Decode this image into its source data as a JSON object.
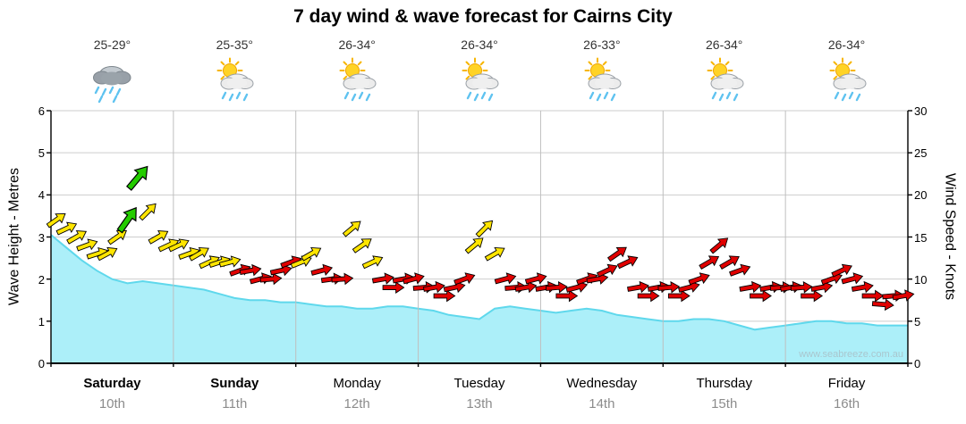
{
  "title": "7 day wind & wave forecast for Cairns City",
  "watermark": "www.seabreeze.com.au",
  "axes": {
    "left_label": "Wave Height - Metres",
    "right_label": "Wind Speed - Knots"
  },
  "days": [
    {
      "name": "Saturday",
      "date": "10th",
      "temp": "25-29°",
      "icon": "rain",
      "bold": true
    },
    {
      "name": "Sunday",
      "date": "11th",
      "temp": "25-35°",
      "icon": "sun-cloud-rain",
      "bold": true
    },
    {
      "name": "Monday",
      "date": "12th",
      "temp": "26-34°",
      "icon": "sun-cloud-rain",
      "bold": false
    },
    {
      "name": "Tuesday",
      "date": "13th",
      "temp": "26-34°",
      "icon": "sun-cloud-rain",
      "bold": false
    },
    {
      "name": "Wednesday",
      "date": "14th",
      "temp": "26-33°",
      "icon": "sun-cloud-rain",
      "bold": false
    },
    {
      "name": "Thursday",
      "date": "15th",
      "temp": "26-34°",
      "icon": "sun-cloud-rain",
      "bold": false
    },
    {
      "name": "Friday",
      "date": "16th",
      "temp": "26-34°",
      "icon": "sun-cloud-rain",
      "bold": false
    }
  ],
  "chart_data": {
    "type": "area",
    "title": "7 day wind & wave forecast for Cairns City",
    "x_unit": "hours (0 = start of Saturday 10th)",
    "x_range": [
      0,
      168
    ],
    "grid": true,
    "left_axis": {
      "label": "Wave Height - Metres",
      "ticks": [
        0,
        1,
        2,
        3,
        4,
        5,
        6
      ],
      "range": [
        0,
        6
      ]
    },
    "right_axis": {
      "label": "Wind Speed - Knots",
      "ticks": [
        0,
        5,
        10,
        15,
        20,
        25,
        30
      ],
      "range": [
        0,
        30
      ]
    },
    "wave_series": {
      "name": "Wave Height",
      "unit": "m",
      "x_start": 0,
      "x_step": 3,
      "values": [
        3.05,
        2.75,
        2.45,
        2.2,
        2.0,
        1.9,
        1.95,
        1.9,
        1.85,
        1.8,
        1.75,
        1.65,
        1.55,
        1.5,
        1.5,
        1.45,
        1.45,
        1.4,
        1.35,
        1.35,
        1.3,
        1.3,
        1.35,
        1.35,
        1.3,
        1.25,
        1.15,
        1.1,
        1.05,
        1.3,
        1.35,
        1.3,
        1.25,
        1.2,
        1.25,
        1.3,
        1.25,
        1.15,
        1.1,
        1.05,
        1.0,
        1.0,
        1.05,
        1.05,
        1.0,
        0.9,
        0.8,
        0.85,
        0.9,
        0.95,
        1.0,
        1.0,
        0.95,
        0.95,
        0.9,
        0.9,
        0.9
      ]
    },
    "wind_arrows": {
      "name": "Wind Speed",
      "unit": "knots",
      "point_format": [
        "t_hours",
        "knots",
        "direction_deg",
        "color_code"
      ],
      "points": [
        [
          1,
          17,
          -35,
          "y"
        ],
        [
          3,
          16,
          -25,
          "y"
        ],
        [
          5,
          15,
          -30,
          "y"
        ],
        [
          7,
          14,
          -20,
          "y"
        ],
        [
          9,
          13,
          -18,
          "y"
        ],
        [
          11,
          13,
          -28,
          "y"
        ],
        [
          13,
          15,
          -35,
          "y"
        ],
        [
          15,
          17,
          -55,
          "g"
        ],
        [
          17,
          22,
          -50,
          "g"
        ],
        [
          19,
          18,
          -45,
          "y"
        ],
        [
          21,
          15,
          -30,
          "y"
        ],
        [
          23,
          14,
          -25,
          "y"
        ],
        [
          25,
          14,
          -25,
          "y"
        ],
        [
          27,
          13,
          -20,
          "y"
        ],
        [
          29,
          13,
          -30,
          "y"
        ],
        [
          31,
          12,
          -25,
          "y"
        ],
        [
          33,
          12,
          -18,
          "y"
        ],
        [
          35,
          12,
          -15,
          "y"
        ],
        [
          37,
          11,
          -20,
          "r"
        ],
        [
          39,
          11,
          -10,
          "r"
        ],
        [
          41,
          10,
          -15,
          "r"
        ],
        [
          43,
          10,
          -5,
          "r"
        ],
        [
          45,
          11,
          -12,
          "r"
        ],
        [
          47,
          12,
          -20,
          "r"
        ],
        [
          49,
          12,
          -22,
          "y"
        ],
        [
          51,
          13,
          -30,
          "y"
        ],
        [
          53,
          11,
          -15,
          "r"
        ],
        [
          55,
          10,
          -8,
          "r"
        ],
        [
          57,
          10,
          -5,
          "r"
        ],
        [
          59,
          16,
          -40,
          "y"
        ],
        [
          61,
          14,
          -35,
          "y"
        ],
        [
          63,
          12,
          -25,
          "y"
        ],
        [
          65,
          10,
          -10,
          "r"
        ],
        [
          67,
          9,
          0,
          "r"
        ],
        [
          69,
          10,
          -10,
          "r"
        ],
        [
          71,
          10,
          -15,
          "r"
        ],
        [
          73,
          9,
          -5,
          "r"
        ],
        [
          75,
          9,
          -10,
          "r"
        ],
        [
          77,
          8,
          0,
          "r"
        ],
        [
          79,
          9,
          -12,
          "r"
        ],
        [
          81,
          10,
          -20,
          "r"
        ],
        [
          83,
          14,
          -40,
          "y"
        ],
        [
          85,
          16,
          -45,
          "y"
        ],
        [
          87,
          13,
          -30,
          "y"
        ],
        [
          89,
          10,
          -15,
          "r"
        ],
        [
          91,
          9,
          -5,
          "r"
        ],
        [
          93,
          9,
          -10,
          "r"
        ],
        [
          95,
          10,
          -15,
          "r"
        ],
        [
          97,
          9,
          -10,
          "r"
        ],
        [
          99,
          9,
          -5,
          "r"
        ],
        [
          101,
          8,
          0,
          "r"
        ],
        [
          103,
          9,
          -15,
          "r"
        ],
        [
          105,
          10,
          -20,
          "r"
        ],
        [
          107,
          10,
          -10,
          "r"
        ],
        [
          109,
          11,
          -25,
          "r"
        ],
        [
          111,
          13,
          -35,
          "r"
        ],
        [
          113,
          12,
          -25,
          "r"
        ],
        [
          115,
          9,
          -10,
          "r"
        ],
        [
          117,
          8,
          0,
          "r"
        ],
        [
          119,
          9,
          -10,
          "r"
        ],
        [
          121,
          9,
          -5,
          "r"
        ],
        [
          123,
          8,
          0,
          "r"
        ],
        [
          125,
          9,
          -15,
          "r"
        ],
        [
          127,
          10,
          -20,
          "r"
        ],
        [
          129,
          12,
          -30,
          "r"
        ],
        [
          131,
          14,
          -40,
          "r"
        ],
        [
          133,
          12,
          -30,
          "r"
        ],
        [
          135,
          11,
          -20,
          "r"
        ],
        [
          137,
          9,
          -10,
          "r"
        ],
        [
          139,
          8,
          0,
          "r"
        ],
        [
          141,
          9,
          -10,
          "r"
        ],
        [
          143,
          9,
          -5,
          "r"
        ],
        [
          145,
          9,
          -10,
          "r"
        ],
        [
          147,
          9,
          -5,
          "r"
        ],
        [
          149,
          8,
          0,
          "r"
        ],
        [
          151,
          9,
          -10,
          "r"
        ],
        [
          153,
          10,
          -20,
          "r"
        ],
        [
          155,
          11,
          -25,
          "r"
        ],
        [
          157,
          10,
          -15,
          "r"
        ],
        [
          159,
          9,
          -10,
          "r"
        ],
        [
          161,
          8,
          0,
          "r"
        ],
        [
          163,
          7,
          5,
          "r"
        ],
        [
          165,
          8,
          -5,
          "r"
        ],
        [
          167,
          8,
          -10,
          "r"
        ]
      ]
    },
    "colors": {
      "wave_fill": "#aceff9",
      "wave_line": "#5fd8ec",
      "arrow_yellow": "#ffe500",
      "arrow_red": "#e00000",
      "arrow_green": "#24cc00",
      "grid": "#cdcdcd",
      "day_separator": "#bfbfbf",
      "axis": "#000000"
    }
  }
}
